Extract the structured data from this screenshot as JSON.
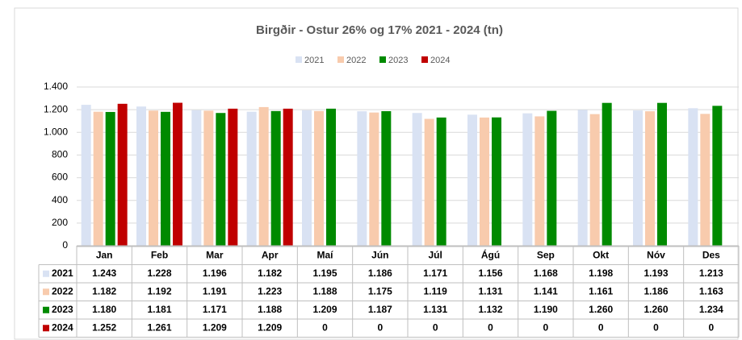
{
  "chart_data": {
    "type": "bar",
    "title": "Birgðir - Ostur 26% og 17%  2021 - 2024 (tn)",
    "categories": [
      "Jan",
      "Feb",
      "Mar",
      "Apr",
      "Maí",
      "Jún",
      "Júl",
      "Ágú",
      "Sep",
      "Okt",
      "Nóv",
      "Des"
    ],
    "series": [
      {
        "name": "2021",
        "color": "#d9e2f3",
        "values": [
          1243,
          1228,
          1196,
          1182,
          1195,
          1186,
          1171,
          1156,
          1168,
          1198,
          1193,
          1213
        ],
        "value_labels": [
          "1.243",
          "1.228",
          "1.196",
          "1.182",
          "1.195",
          "1.186",
          "1.171",
          "1.156",
          "1.168",
          "1.198",
          "1.193",
          "1.213"
        ]
      },
      {
        "name": "2022",
        "color": "#f8cbad",
        "values": [
          1182,
          1192,
          1191,
          1223,
          1188,
          1175,
          1119,
          1131,
          1141,
          1161,
          1186,
          1163
        ],
        "value_labels": [
          "1.182",
          "1.192",
          "1.191",
          "1.223",
          "1.188",
          "1.175",
          "1.119",
          "1.131",
          "1.141",
          "1.161",
          "1.186",
          "1.163"
        ]
      },
      {
        "name": "2023",
        "color": "#008a00",
        "values": [
          1180,
          1181,
          1171,
          1188,
          1209,
          1187,
          1131,
          1132,
          1190,
          1260,
          1260,
          1234
        ],
        "value_labels": [
          "1.180",
          "1.181",
          "1.171",
          "1.188",
          "1.209",
          "1.187",
          "1.131",
          "1.132",
          "1.190",
          "1.260",
          "1.260",
          "1.234"
        ]
      },
      {
        "name": "2024",
        "color": "#c00000",
        "values": [
          1252,
          1261,
          1209,
          1209,
          0,
          0,
          0,
          0,
          0,
          0,
          0,
          0
        ],
        "value_labels": [
          "1.252",
          "1.261",
          "1.209",
          "1.209",
          "0",
          "0",
          "0",
          "0",
          "0",
          "0",
          "0",
          "0"
        ]
      }
    ],
    "ylim": [
      0,
      1400
    ],
    "yticks": [
      0,
      {
        "value": 200,
        "label": "200"
      },
      {
        "value": 400,
        "label": "400"
      },
      {
        "value": 600,
        "label": "600"
      },
      {
        "value": 800,
        "label": "800"
      },
      {
        "value": 1000,
        "label": "1.000"
      },
      {
        "value": 1200,
        "label": "1.200"
      },
      {
        "value": 1400,
        "label": "1.400"
      }
    ],
    "grid": true,
    "legend": "top"
  }
}
